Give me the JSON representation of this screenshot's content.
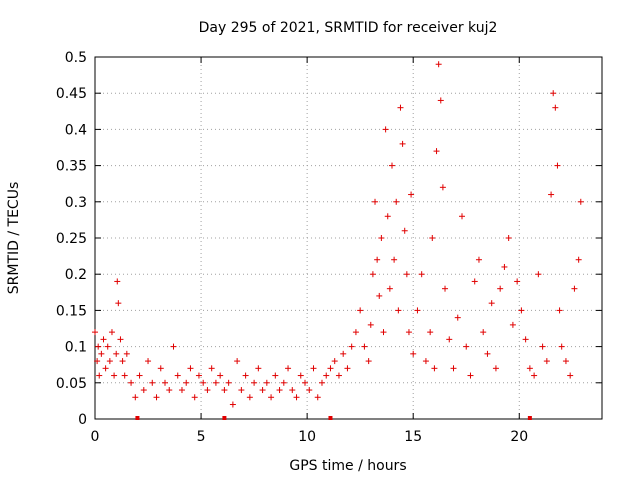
{
  "chart_data": {
    "type": "scatter",
    "title": "Day 295 of 2021, SRMTID for receiver kuj2",
    "xlabel": "GPS time / hours",
    "ylabel": "SRMTID / TECUs",
    "xlim": [
      0,
      23.9
    ],
    "ylim": [
      0,
      0.5
    ],
    "xticks": [
      0,
      5,
      10,
      15,
      20
    ],
    "xtick_labels": [
      "0",
      "5",
      "10",
      "15",
      "20"
    ],
    "yticks": [
      0,
      0.05,
      0.1,
      0.15,
      0.2,
      0.25,
      0.3,
      0.35,
      0.4,
      0.45,
      0.5
    ],
    "ytick_labels": [
      "0",
      "0.05",
      "0.1",
      "0.15",
      "0.2",
      "0.25",
      "0.3",
      "0.35",
      "0.4",
      "0.45",
      "0.5"
    ],
    "grid": true,
    "marker": "+",
    "color": "#e00000",
    "series": [
      {
        "name": "SRMTID",
        "x": [
          0.0,
          0.1,
          0.15,
          0.2,
          0.3,
          0.4,
          0.5,
          0.6,
          0.7,
          0.8,
          0.9,
          1.0,
          1.05,
          1.1,
          1.2,
          1.3,
          1.4,
          1.5,
          1.7,
          1.9,
          2.1,
          2.3,
          2.5,
          2.7,
          2.9,
          3.1,
          3.3,
          3.5,
          3.7,
          3.9,
          4.1,
          4.3,
          4.5,
          4.7,
          4.9,
          5.1,
          5.3,
          5.5,
          5.7,
          5.9,
          6.1,
          6.3,
          6.5,
          6.7,
          6.9,
          7.1,
          7.3,
          7.5,
          7.7,
          7.9,
          8.1,
          8.3,
          8.5,
          8.7,
          8.9,
          9.1,
          9.3,
          9.5,
          9.7,
          9.9,
          10.1,
          10.3,
          10.5,
          10.7,
          10.9,
          11.1,
          11.3,
          11.5,
          11.7,
          11.9,
          12.1,
          12.3,
          12.5,
          12.7,
          12.9,
          13.0,
          13.1,
          13.2,
          13.3,
          13.4,
          13.5,
          13.6,
          13.7,
          13.8,
          13.9,
          14.0,
          14.1,
          14.2,
          14.3,
          14.4,
          14.5,
          14.6,
          14.7,
          14.8,
          14.9,
          15.0,
          15.2,
          15.4,
          15.6,
          15.8,
          15.9,
          16.0,
          16.1,
          16.2,
          16.3,
          16.4,
          16.5,
          16.7,
          16.9,
          17.1,
          17.3,
          17.5,
          17.7,
          17.9,
          18.1,
          18.3,
          18.5,
          18.7,
          18.9,
          19.1,
          19.3,
          19.5,
          19.7,
          19.9,
          20.1,
          20.3,
          20.5,
          20.7,
          20.9,
          21.1,
          21.3,
          21.5,
          21.6,
          21.7,
          21.8,
          21.9,
          22.0,
          22.2,
          22.4,
          22.6,
          22.8,
          22.9
        ],
        "y": [
          0.12,
          0.08,
          0.1,
          0.06,
          0.09,
          0.11,
          0.07,
          0.1,
          0.08,
          0.12,
          0.06,
          0.09,
          0.19,
          0.16,
          0.11,
          0.08,
          0.06,
          0.09,
          0.05,
          0.03,
          0.06,
          0.04,
          0.08,
          0.05,
          0.03,
          0.07,
          0.05,
          0.04,
          0.1,
          0.06,
          0.04,
          0.05,
          0.07,
          0.03,
          0.06,
          0.05,
          0.04,
          0.07,
          0.05,
          0.06,
          0.04,
          0.05,
          0.02,
          0.08,
          0.04,
          0.06,
          0.03,
          0.05,
          0.07,
          0.04,
          0.05,
          0.03,
          0.06,
          0.04,
          0.05,
          0.07,
          0.04,
          0.03,
          0.06,
          0.05,
          0.04,
          0.07,
          0.03,
          0.05,
          0.06,
          0.07,
          0.08,
          0.06,
          0.09,
          0.07,
          0.1,
          0.12,
          0.15,
          0.1,
          0.08,
          0.13,
          0.2,
          0.3,
          0.22,
          0.17,
          0.25,
          0.12,
          0.4,
          0.28,
          0.18,
          0.35,
          0.22,
          0.3,
          0.15,
          0.43,
          0.38,
          0.26,
          0.2,
          0.12,
          0.31,
          0.09,
          0.15,
          0.2,
          0.08,
          0.12,
          0.25,
          0.07,
          0.37,
          0.49,
          0.44,
          0.32,
          0.18,
          0.11,
          0.07,
          0.14,
          0.28,
          0.1,
          0.06,
          0.19,
          0.22,
          0.12,
          0.09,
          0.16,
          0.07,
          0.18,
          0.21,
          0.25,
          0.13,
          0.19,
          0.15,
          0.11,
          0.07,
          0.06,
          0.2,
          0.1,
          0.08,
          0.31,
          0.45,
          0.43,
          0.35,
          0.15,
          0.1,
          0.08,
          0.06,
          0.18,
          0.22,
          0.3
        ]
      }
    ],
    "x_markers": [
      2.0,
      6.1,
      11.1,
      20.5
    ]
  }
}
